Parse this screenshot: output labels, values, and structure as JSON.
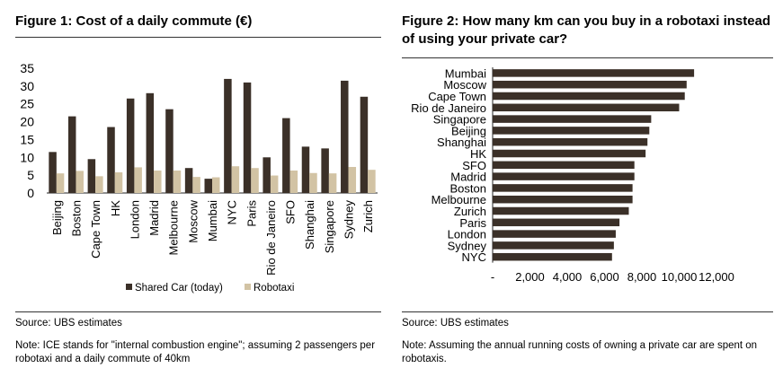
{
  "figure1": {
    "title": "Figure 1: Cost of a daily commute (€)",
    "source": "Source:  UBS estimates",
    "note": "Note: ICE stands for \"internal combustion engine\"; assuming 2 passengers per robotaxi and a daily commute of 40km"
  },
  "figure2": {
    "title": "Figure 2: How many km can you buy in a robotaxi instead of using your private car?",
    "source": "Source:  UBS estimates",
    "note": "Note: Assuming the annual running costs of owning a private car are spent on robotaxis."
  },
  "chart_data": [
    {
      "type": "bar",
      "title": "Figure 1: Cost of a daily commute (€)",
      "categories": [
        "Beijing",
        "Boston",
        "Cape Town",
        "HK",
        "London",
        "Madrid",
        "Melbourne",
        "Moscow",
        "Mumbai",
        "NYC",
        "Paris",
        "Rio de Janeiro",
        "SFO",
        "Shanghai",
        "Singapore",
        "Sydney",
        "Zurich"
      ],
      "series": [
        {
          "name": "Shared Car (today)",
          "color": "#3b3028",
          "values": [
            11.5,
            21.5,
            9.5,
            18.5,
            26.5,
            28,
            23.5,
            7,
            4,
            32,
            31,
            10,
            21,
            13,
            12.5,
            31.5,
            27
          ]
        },
        {
          "name": "Robotaxi",
          "color": "#d2c3a4",
          "values": [
            5.5,
            6.2,
            4.7,
            5.8,
            7.2,
            6.3,
            6.3,
            4.5,
            4.4,
            7.5,
            7,
            4.9,
            6.3,
            5.6,
            5.5,
            7.3,
            6.5
          ]
        }
      ],
      "yticks": [
        "0",
        "5",
        "10",
        "15",
        "20",
        "25",
        "30",
        "35"
      ],
      "ylim": [
        0,
        35
      ],
      "legend": "bottom"
    },
    {
      "type": "bar",
      "orientation": "horizontal",
      "title": "Figure 2: How many km can you buy in a robotaxi instead of using your private car?",
      "categories": [
        "Mumbai",
        "Moscow",
        "Cape Town",
        "Rio de Janeiro",
        "Singapore",
        "Beijing",
        "Shanghai",
        "HK",
        "SFO",
        "Madrid",
        "Boston",
        "Melbourne",
        "Zurich",
        "Paris",
        "London",
        "Sydney",
        "NYC"
      ],
      "values": [
        10800,
        10400,
        10300,
        10000,
        8500,
        8400,
        8300,
        8200,
        7600,
        7600,
        7500,
        7500,
        7300,
        6800,
        6600,
        6500,
        6400
      ],
      "color": "#3b3028",
      "xticks": [
        "-",
        "2,000",
        "4,000",
        "6,000",
        "8,000",
        "10,000",
        "12,000"
      ],
      "xlim": [
        0,
        12000
      ]
    }
  ]
}
